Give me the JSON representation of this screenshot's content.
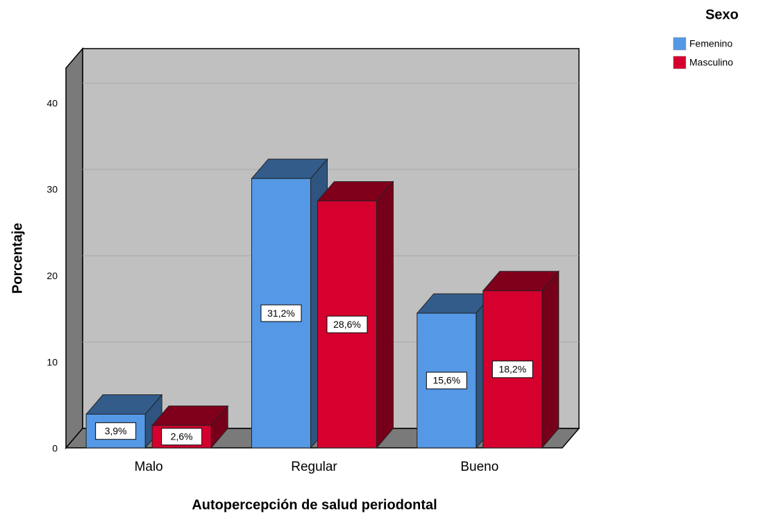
{
  "chart_data": {
    "type": "bar3d",
    "x_label": "Autopercepción de salud periodontal",
    "y_label": "Porcentaje",
    "legend_title": "Sexo",
    "legend_position": "top-right",
    "categories": [
      "Malo",
      "Regular",
      "Bueno"
    ],
    "series": [
      {
        "name": "Femenino",
        "color": "#5599e6",
        "values": [
          3.9,
          31.2,
          15.6
        ],
        "value_labels": [
          "3,9%",
          "31,2%",
          "15,6%"
        ]
      },
      {
        "name": "Masculino",
        "color": "#d6002f",
        "values": [
          2.6,
          28.6,
          18.2
        ],
        "value_labels": [
          "2,6%",
          "28,6%",
          "18,2%"
        ]
      }
    ],
    "ylim": [
      0,
      44
    ],
    "yticks": [
      0,
      10,
      20,
      30,
      40
    ],
    "grid": true
  }
}
